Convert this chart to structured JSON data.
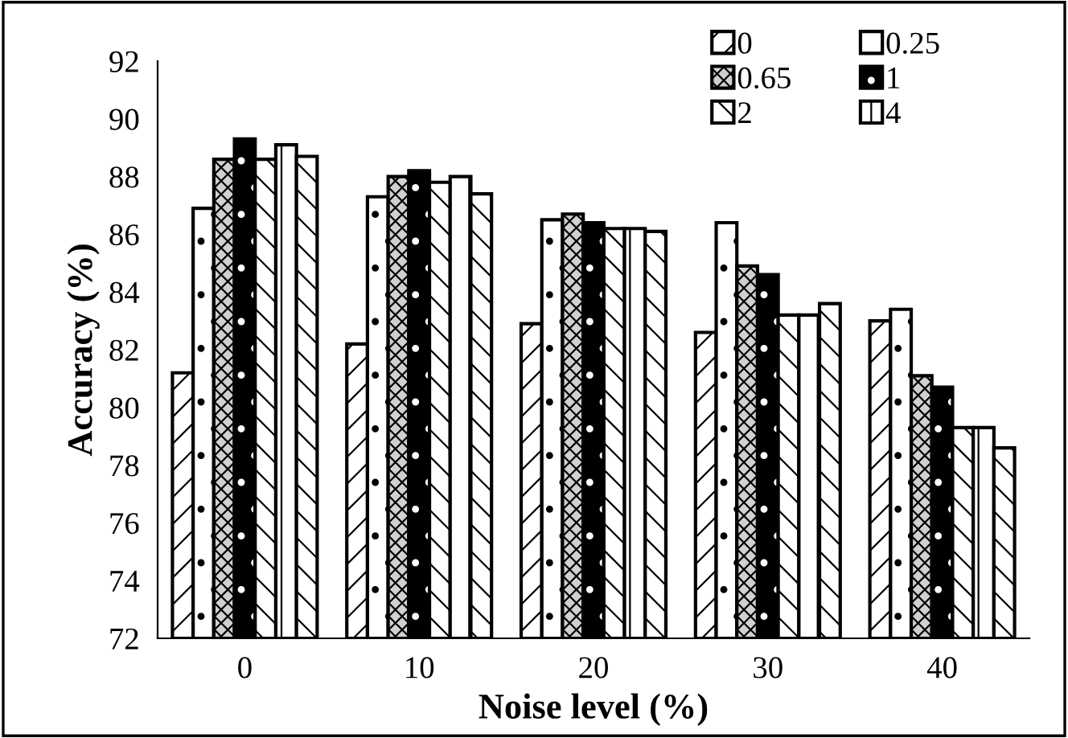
{
  "chart_data": {
    "type": "bar",
    "xlabel": "Noise level (%)",
    "ylabel": "Accuracy (%)",
    "categories": [
      "0",
      "10",
      "20",
      "30",
      "40"
    ],
    "series": [
      {
        "name": "0",
        "color": "#000000",
        "values": [
          81.2,
          82.2,
          82.9,
          82.6,
          83.0
        ]
      },
      {
        "name": "0.25",
        "color": "#000000",
        "values": [
          86.9,
          87.3,
          86.5,
          86.4,
          83.4
        ]
      },
      {
        "name": "0.65",
        "color": "#000000",
        "values": [
          88.6,
          88.0,
          86.7,
          84.9,
          81.1
        ]
      },
      {
        "name": "1",
        "color": "#000000",
        "values": [
          89.3,
          88.2,
          86.4,
          84.6,
          80.7
        ]
      },
      {
        "name": "2",
        "color": "#000000",
        "values": [
          88.6,
          87.8,
          86.2,
          83.2,
          79.3
        ]
      },
      {
        "name": "4",
        "color": "#000000",
        "values": [
          89.1,
          88.0,
          86.2,
          83.2,
          79.3
        ]
      },
      {
        "color": "#000000",
        "values": [
          88.7,
          87.4,
          86.1,
          83.6,
          78.6
        ]
      }
    ],
    "ylim": [
      72,
      92
    ],
    "yticks": [
      72,
      74,
      76,
      78,
      80,
      82,
      84,
      86,
      88,
      90,
      92
    ],
    "grid": false,
    "legend": "top right"
  }
}
